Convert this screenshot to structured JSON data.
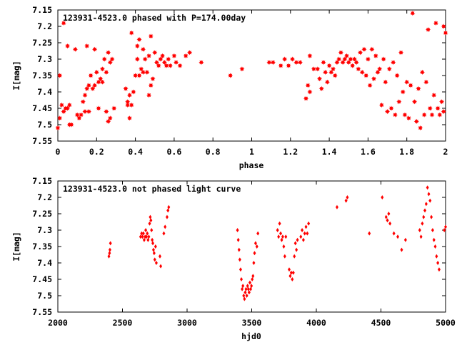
{
  "chart_data": [
    {
      "type": "scatter",
      "title": "123931-4523.0 phased with P=174.00day",
      "xlabel": "phase",
      "ylabel": "I[mag]",
      "xlim": [
        0,
        2
      ],
      "ylim": [
        7.15,
        7.55
      ],
      "y_inverted": true,
      "grid": false,
      "marker": "star",
      "color": "#ff0000",
      "xticks": [
        "0",
        "0.2",
        "0.4",
        "0.6",
        "0.8",
        "1",
        "1.2",
        "1.4",
        "1.6",
        "1.8",
        "2"
      ],
      "yticks": [
        "7.15",
        "7.2",
        "7.25",
        "7.3",
        "7.35",
        "7.4",
        "7.45",
        "7.5",
        "7.55"
      ],
      "points": [
        [
          0.0,
          7.51
        ],
        [
          0.01,
          7.35
        ],
        [
          0.01,
          7.48
        ],
        [
          0.02,
          7.44
        ],
        [
          0.03,
          7.46
        ],
        [
          0.03,
          7.19
        ],
        [
          0.04,
          7.45
        ],
        [
          0.05,
          7.45
        ],
        [
          0.05,
          7.26
        ],
        [
          0.06,
          7.44
        ],
        [
          0.06,
          7.5
        ],
        [
          0.07,
          7.5
        ],
        [
          0.09,
          7.27
        ],
        [
          0.1,
          7.47
        ],
        [
          0.11,
          7.48
        ],
        [
          0.12,
          7.47
        ],
        [
          0.13,
          7.43
        ],
        [
          0.14,
          7.46
        ],
        [
          0.14,
          7.41
        ],
        [
          0.15,
          7.26
        ],
        [
          0.15,
          7.39
        ],
        [
          0.16,
          7.38
        ],
        [
          0.16,
          7.46
        ],
        [
          0.17,
          7.35
        ],
        [
          0.18,
          7.39
        ],
        [
          0.19,
          7.38
        ],
        [
          0.19,
          7.27
        ],
        [
          0.2,
          7.34
        ],
        [
          0.21,
          7.37
        ],
        [
          0.21,
          7.45
        ],
        [
          0.22,
          7.36
        ],
        [
          0.23,
          7.33
        ],
        [
          0.23,
          7.37
        ],
        [
          0.24,
          7.3
        ],
        [
          0.25,
          7.34
        ],
        [
          0.25,
          7.46
        ],
        [
          0.26,
          7.28
        ],
        [
          0.26,
          7.49
        ],
        [
          0.27,
          7.31
        ],
        [
          0.27,
          7.48
        ],
        [
          0.28,
          7.3
        ],
        [
          0.29,
          7.45
        ],
        [
          0.35,
          7.39
        ],
        [
          0.36,
          7.43
        ],
        [
          0.36,
          7.44
        ],
        [
          0.37,
          7.41
        ],
        [
          0.37,
          7.48
        ],
        [
          0.38,
          7.22
        ],
        [
          0.38,
          7.44
        ],
        [
          0.39,
          7.4
        ],
        [
          0.4,
          7.35
        ],
        [
          0.41,
          7.26
        ],
        [
          0.41,
          7.3
        ],
        [
          0.42,
          7.35
        ],
        [
          0.42,
          7.24
        ],
        [
          0.43,
          7.33
        ],
        [
          0.44,
          7.34
        ],
        [
          0.44,
          7.27
        ],
        [
          0.45,
          7.3
        ],
        [
          0.46,
          7.34
        ],
        [
          0.47,
          7.29
        ],
        [
          0.47,
          7.41
        ],
        [
          0.48,
          7.38
        ],
        [
          0.48,
          7.23
        ],
        [
          0.49,
          7.36
        ],
        [
          0.5,
          7.28
        ],
        [
          0.51,
          7.31
        ],
        [
          0.52,
          7.32
        ],
        [
          0.53,
          7.3
        ],
        [
          0.54,
          7.29
        ],
        [
          0.55,
          7.31
        ],
        [
          0.56,
          7.32
        ],
        [
          0.57,
          7.3
        ],
        [
          0.58,
          7.32
        ],
        [
          0.6,
          7.29
        ],
        [
          0.61,
          7.31
        ],
        [
          0.63,
          7.32
        ],
        [
          0.66,
          7.29
        ],
        [
          0.68,
          7.28
        ],
        [
          0.74,
          7.31
        ],
        [
          0.89,
          7.35
        ],
        [
          0.95,
          7.33
        ],
        [
          1.09,
          7.31
        ],
        [
          1.11,
          7.31
        ],
        [
          1.15,
          7.32
        ],
        [
          1.17,
          7.3
        ],
        [
          1.19,
          7.32
        ],
        [
          1.21,
          7.3
        ],
        [
          1.23,
          7.31
        ],
        [
          1.25,
          7.31
        ],
        [
          1.28,
          7.42
        ],
        [
          1.29,
          7.38
        ],
        [
          1.3,
          7.29
        ],
        [
          1.3,
          7.4
        ],
        [
          1.32,
          7.33
        ],
        [
          1.34,
          7.33
        ],
        [
          1.35,
          7.36
        ],
        [
          1.36,
          7.39
        ],
        [
          1.37,
          7.31
        ],
        [
          1.38,
          7.34
        ],
        [
          1.39,
          7.37
        ],
        [
          1.4,
          7.32
        ],
        [
          1.41,
          7.34
        ],
        [
          1.42,
          7.33
        ],
        [
          1.43,
          7.35
        ],
        [
          1.44,
          7.31
        ],
        [
          1.45,
          7.3
        ],
        [
          1.46,
          7.28
        ],
        [
          1.47,
          7.31
        ],
        [
          1.48,
          7.3
        ],
        [
          1.49,
          7.29
        ],
        [
          1.5,
          7.31
        ],
        [
          1.51,
          7.3
        ],
        [
          1.52,
          7.32
        ],
        [
          1.53,
          7.3
        ],
        [
          1.54,
          7.31
        ],
        [
          1.55,
          7.33
        ],
        [
          1.56,
          7.28
        ],
        [
          1.57,
          7.34
        ],
        [
          1.58,
          7.27
        ],
        [
          1.59,
          7.35
        ],
        [
          1.6,
          7.3
        ],
        [
          1.61,
          7.38
        ],
        [
          1.62,
          7.27
        ],
        [
          1.63,
          7.36
        ],
        [
          1.64,
          7.29
        ],
        [
          1.65,
          7.34
        ],
        [
          1.66,
          7.33
        ],
        [
          1.67,
          7.44
        ],
        [
          1.68,
          7.3
        ],
        [
          1.69,
          7.37
        ],
        [
          1.7,
          7.46
        ],
        [
          1.71,
          7.33
        ],
        [
          1.72,
          7.45
        ],
        [
          1.73,
          7.31
        ],
        [
          1.74,
          7.47
        ],
        [
          1.75,
          7.35
        ],
        [
          1.76,
          7.43
        ],
        [
          1.77,
          7.28
        ],
        [
          1.78,
          7.4
        ],
        [
          1.79,
          7.47
        ],
        [
          1.8,
          7.37
        ],
        [
          1.81,
          7.48
        ],
        [
          1.82,
          7.38
        ],
        [
          1.83,
          7.16
        ],
        [
          1.84,
          7.43
        ],
        [
          1.85,
          7.49
        ],
        [
          1.86,
          7.39
        ],
        [
          1.87,
          7.51
        ],
        [
          1.88,
          7.34
        ],
        [
          1.89,
          7.47
        ],
        [
          1.9,
          7.37
        ],
        [
          1.91,
          7.21
        ],
        [
          1.92,
          7.45
        ],
        [
          1.93,
          7.47
        ],
        [
          1.94,
          7.41
        ],
        [
          1.95,
          7.19
        ],
        [
          1.96,
          7.45
        ],
        [
          1.97,
          7.47
        ],
        [
          1.98,
          7.43
        ],
        [
          1.99,
          7.2
        ],
        [
          1.99,
          7.46
        ],
        [
          2.0,
          7.22
        ]
      ]
    },
    {
      "type": "scatter",
      "title": "123931-4523.0 not phased light curve",
      "xlabel": "hjd0",
      "ylabel": "I[mag]",
      "xlim": [
        2000,
        5000
      ],
      "ylim": [
        7.15,
        7.55
      ],
      "y_inverted": true,
      "grid": false,
      "marker": "diamond",
      "color": "#ff0000",
      "xticks": [
        "2000",
        "2500",
        "3000",
        "3500",
        "4000",
        "4500",
        "5000"
      ],
      "yticks": [
        "7.15",
        "7.2",
        "7.25",
        "7.3",
        "7.35",
        "7.4",
        "7.45",
        "7.5",
        "7.55"
      ],
      "points": [
        [
          2395,
          7.38
        ],
        [
          2400,
          7.37
        ],
        [
          2403,
          7.36
        ],
        [
          2407,
          7.34
        ],
        [
          2640,
          7.32
        ],
        [
          2648,
          7.31
        ],
        [
          2655,
          7.32
        ],
        [
          2662,
          7.31
        ],
        [
          2668,
          7.33
        ],
        [
          2675,
          7.32
        ],
        [
          2680,
          7.3
        ],
        [
          2686,
          7.32
        ],
        [
          2692,
          7.31
        ],
        [
          2698,
          7.33
        ],
        [
          2704,
          7.32
        ],
        [
          2710,
          7.28
        ],
        [
          2715,
          7.26
        ],
        [
          2720,
          7.27
        ],
        [
          2725,
          7.3
        ],
        [
          2730,
          7.33
        ],
        [
          2735,
          7.34
        ],
        [
          2740,
          7.36
        ],
        [
          2745,
          7.37
        ],
        [
          2750,
          7.39
        ],
        [
          2756,
          7.35
        ],
        [
          2762,
          7.4
        ],
        [
          2790,
          7.38
        ],
        [
          2796,
          7.41
        ],
        [
          2820,
          7.31
        ],
        [
          2830,
          7.29
        ],
        [
          2845,
          7.26
        ],
        [
          2852,
          7.24
        ],
        [
          2858,
          7.23
        ],
        [
          3390,
          7.3
        ],
        [
          3396,
          7.33
        ],
        [
          3402,
          7.36
        ],
        [
          3408,
          7.39
        ],
        [
          3414,
          7.42
        ],
        [
          3420,
          7.45
        ],
        [
          3426,
          7.48
        ],
        [
          3432,
          7.47
        ],
        [
          3438,
          7.5
        ],
        [
          3444,
          7.51
        ],
        [
          3450,
          7.49
        ],
        [
          3456,
          7.48
        ],
        [
          3462,
          7.5
        ],
        [
          3468,
          7.47
        ],
        [
          3474,
          7.48
        ],
        [
          3480,
          7.49
        ],
        [
          3486,
          7.46
        ],
        [
          3492,
          7.48
        ],
        [
          3498,
          7.47
        ],
        [
          3504,
          7.45
        ],
        [
          3510,
          7.44
        ],
        [
          3516,
          7.4
        ],
        [
          3522,
          7.37
        ],
        [
          3530,
          7.34
        ],
        [
          3540,
          7.35
        ],
        [
          3548,
          7.31
        ],
        [
          3700,
          7.3
        ],
        [
          3708,
          7.32
        ],
        [
          3716,
          7.28
        ],
        [
          3724,
          7.31
        ],
        [
          3732,
          7.33
        ],
        [
          3740,
          7.32
        ],
        [
          3748,
          7.35
        ],
        [
          3756,
          7.38
        ],
        [
          3764,
          7.32
        ],
        [
          3790,
          7.42
        ],
        [
          3798,
          7.44
        ],
        [
          3806,
          7.43
        ],
        [
          3814,
          7.45
        ],
        [
          3822,
          7.43
        ],
        [
          3830,
          7.38
        ],
        [
          3838,
          7.34
        ],
        [
          3846,
          7.36
        ],
        [
          3854,
          7.33
        ],
        [
          3880,
          7.32
        ],
        [
          3890,
          7.3
        ],
        [
          3900,
          7.33
        ],
        [
          3910,
          7.31
        ],
        [
          3920,
          7.29
        ],
        [
          3930,
          7.31
        ],
        [
          3940,
          7.28
        ],
        [
          4160,
          7.23
        ],
        [
          4230,
          7.21
        ],
        [
          4240,
          7.2
        ],
        [
          4410,
          7.31
        ],
        [
          4510,
          7.2
        ],
        [
          4540,
          7.26
        ],
        [
          4550,
          7.27
        ],
        [
          4560,
          7.25
        ],
        [
          4570,
          7.28
        ],
        [
          4600,
          7.31
        ],
        [
          4630,
          7.32
        ],
        [
          4660,
          7.36
        ],
        [
          4690,
          7.33
        ],
        [
          4800,
          7.3
        ],
        [
          4810,
          7.32
        ],
        [
          4820,
          7.28
        ],
        [
          4830,
          7.26
        ],
        [
          4840,
          7.24
        ],
        [
          4850,
          7.22
        ],
        [
          4860,
          7.17
        ],
        [
          4870,
          7.19
        ],
        [
          4880,
          7.21
        ],
        [
          4890,
          7.26
        ],
        [
          4900,
          7.3
        ],
        [
          4910,
          7.33
        ],
        [
          4920,
          7.35
        ],
        [
          4930,
          7.38
        ],
        [
          4940,
          7.4
        ],
        [
          4950,
          7.42
        ],
        [
          4990,
          7.3
        ],
        [
          5000,
          7.29
        ]
      ]
    }
  ]
}
